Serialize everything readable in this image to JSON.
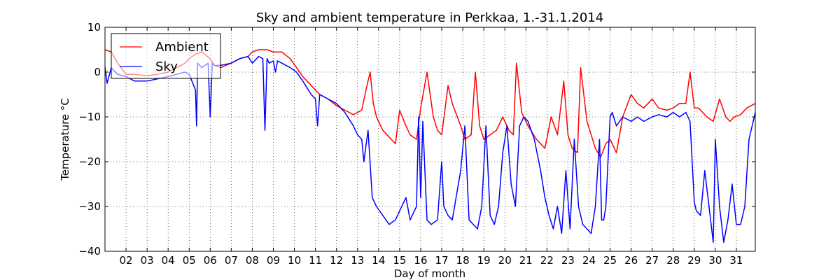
{
  "chart_data": {
    "type": "line",
    "title": "Sky and ambient temperature in Perkkaa, 1.-31.1.2014",
    "xlabel": "Day of month",
    "ylabel": "Temperature °C",
    "xlim": [
      1,
      31.9
    ],
    "ylim": [
      -40,
      10
    ],
    "grid": true,
    "legend_position": "top-left",
    "x_ticks": [
      "02",
      "03",
      "04",
      "05",
      "06",
      "07",
      "08",
      "09",
      "10",
      "11",
      "12",
      "13",
      "14",
      "15",
      "16",
      "17",
      "18",
      "19",
      "20",
      "21",
      "22",
      "23",
      "24",
      "25",
      "26",
      "27",
      "28",
      "29",
      "30",
      "31"
    ],
    "y_ticks": [
      "10",
      "0",
      "−10",
      "−20",
      "−30",
      "−40"
    ],
    "series": [
      {
        "name": "Ambient",
        "color": "#ff0000",
        "x": [
          1.0,
          1.3,
          1.6,
          2.0,
          2.4,
          3.0,
          3.5,
          4.0,
          4.4,
          4.8,
          5.0,
          5.3,
          5.6,
          6.0,
          6.2,
          6.5,
          7.0,
          7.4,
          7.8,
          8.0,
          8.3,
          8.7,
          9.0,
          9.4,
          9.8,
          10.1,
          10.4,
          10.8,
          11.2,
          11.6,
          12.0,
          12.4,
          12.8,
          13.2,
          13.4,
          13.6,
          13.75,
          13.9,
          14.2,
          14.6,
          14.8,
          15.0,
          15.3,
          15.5,
          15.8,
          16.0,
          16.3,
          16.6,
          16.8,
          17.0,
          17.3,
          17.5,
          17.9,
          18.1,
          18.4,
          18.6,
          18.8,
          19.0,
          19.3,
          19.6,
          19.9,
          20.2,
          20.4,
          20.55,
          20.8,
          21.1,
          21.5,
          21.9,
          22.2,
          22.5,
          22.8,
          23.0,
          23.2,
          23.45,
          23.6,
          23.9,
          24.3,
          24.55,
          24.8,
          25.0,
          25.3,
          25.6,
          26.0,
          26.3,
          26.6,
          27.0,
          27.3,
          27.7,
          28.0,
          28.3,
          28.6,
          28.8,
          29.0,
          29.2,
          29.4,
          29.6,
          29.9,
          30.2,
          30.5,
          30.7,
          30.9,
          31.2,
          31.5,
          31.9
        ],
        "values": [
          5,
          4.5,
          2,
          -0.5,
          -0.5,
          -0.8,
          -0.5,
          0,
          1,
          2,
          3,
          4,
          4.5,
          3,
          1.5,
          1,
          2,
          3,
          3.5,
          4.5,
          5,
          5,
          4.5,
          4.5,
          3,
          1,
          -1,
          -3,
          -5,
          -6,
          -7.5,
          -8.5,
          -9.5,
          -8.5,
          -4,
          0,
          -7,
          -10,
          -13,
          -15,
          -16,
          -8.5,
          -12,
          -14,
          -15,
          -8,
          0,
          -10,
          -13,
          -14,
          -3,
          -7,
          -12,
          -15,
          -14,
          0,
          -12,
          -15,
          -14,
          -13,
          -10,
          -13,
          -14,
          2,
          -9,
          -12,
          -15,
          -17,
          -10,
          -14,
          -2,
          -14,
          -17,
          -18,
          1,
          -11,
          -17,
          -19,
          -16,
          -15,
          -18,
          -10,
          -5,
          -7,
          -8,
          -6,
          -8,
          -8.5,
          -8,
          -7,
          -7,
          0,
          -8,
          -8,
          -9,
          -10,
          -11,
          -6,
          -10,
          -11,
          -10,
          -9.5,
          -8,
          -7
        ]
      },
      {
        "name": "Sky",
        "color": "#0000ff",
        "x": [
          1.0,
          1.1,
          1.3,
          1.6,
          2.0,
          2.4,
          3.0,
          3.5,
          4.0,
          4.4,
          4.8,
          5.0,
          5.3,
          5.35,
          5.4,
          5.6,
          5.9,
          6.0,
          6.1,
          6.2,
          6.5,
          7.0,
          7.4,
          7.8,
          8.0,
          8.3,
          8.5,
          8.6,
          8.7,
          8.8,
          9.0,
          9.1,
          9.2,
          9.4,
          9.8,
          10.1,
          10.4,
          10.8,
          11.0,
          11.1,
          11.2,
          11.6,
          12.0,
          12.4,
          12.8,
          13.0,
          13.2,
          13.3,
          13.5,
          13.7,
          13.9,
          14.2,
          14.5,
          14.8,
          15.0,
          15.3,
          15.5,
          15.8,
          15.9,
          16.0,
          16.1,
          16.3,
          16.5,
          16.8,
          17.0,
          17.1,
          17.3,
          17.5,
          17.9,
          18.1,
          18.3,
          18.5,
          18.7,
          18.9,
          19.1,
          19.3,
          19.5,
          19.7,
          19.9,
          20.1,
          20.3,
          20.5,
          20.7,
          20.9,
          21.1,
          21.4,
          21.7,
          21.9,
          22.1,
          22.3,
          22.5,
          22.7,
          22.9,
          23.1,
          23.3,
          23.5,
          23.7,
          23.9,
          24.1,
          24.3,
          24.5,
          24.6,
          24.7,
          24.8,
          25.0,
          25.1,
          25.3,
          25.6,
          26.0,
          26.3,
          26.6,
          27.0,
          27.3,
          27.7,
          28.0,
          28.3,
          28.6,
          28.8,
          29.0,
          29.1,
          29.3,
          29.5,
          29.7,
          29.9,
          30.0,
          30.2,
          30.4,
          30.6,
          30.8,
          31.0,
          31.2,
          31.4,
          31.6,
          31.9
        ],
        "values": [
          1,
          -2.5,
          1,
          -0.5,
          -1,
          -2,
          -2,
          -1.5,
          -1,
          -0.5,
          0,
          -0.5,
          -4,
          -12,
          2,
          1,
          2,
          -10,
          2,
          1.5,
          1.5,
          2,
          3,
          3.5,
          2,
          3.5,
          3,
          -13,
          3,
          2,
          2.5,
          0,
          2.5,
          2,
          1,
          0,
          -2,
          -5,
          -6,
          -12,
          -5,
          -6,
          -7,
          -9,
          -12,
          -14,
          -15,
          -20,
          -13,
          -28,
          -30,
          -32,
          -34,
          -33,
          -31,
          -28,
          -33,
          -30,
          -10,
          -28,
          -11,
          -33,
          -34,
          -33,
          -20,
          -30,
          -32,
          -33,
          -22,
          -12,
          -33,
          -34,
          -35,
          -30,
          -12,
          -32,
          -34,
          -30,
          -18,
          -12,
          -25,
          -30,
          -12,
          -10,
          -11,
          -15,
          -22,
          -28,
          -32,
          -35,
          -30,
          -36,
          -22,
          -35,
          -15,
          -30,
          -34,
          -35,
          -36,
          -30,
          -15,
          -33,
          -33,
          -30,
          -10,
          -9,
          -12,
          -10,
          -11,
          -10,
          -11,
          -10,
          -9.5,
          -10,
          -9,
          -10,
          -9,
          -11,
          -29,
          -31,
          -32,
          -22,
          -30,
          -38,
          -15,
          -30,
          -38,
          -33,
          -25,
          -34,
          -34,
          -30,
          -15,
          -9
        ]
      }
    ]
  }
}
